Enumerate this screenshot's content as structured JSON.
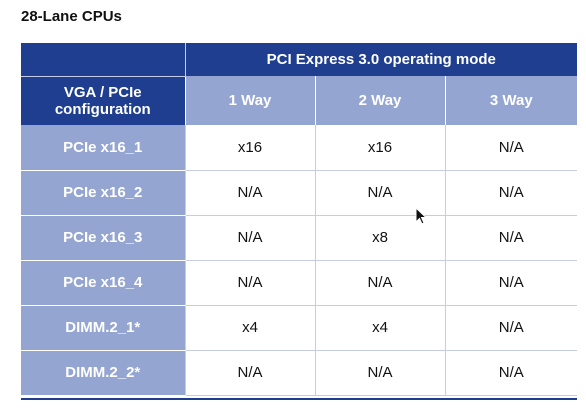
{
  "title": "28-Lane CPUs",
  "header": {
    "group_title": "PCI Express 3.0 operating mode",
    "config_label_line1": "VGA / PCIe",
    "config_label_line2": "configuration",
    "columns": [
      "1 Way",
      "2 Way",
      "3 Way"
    ]
  },
  "rows": [
    {
      "label": "PCIe x16_1",
      "values": [
        "x16",
        "x16",
        "N/A"
      ]
    },
    {
      "label": "PCIe x16_2",
      "values": [
        "N/A",
        "N/A",
        "N/A"
      ]
    },
    {
      "label": "PCIe x16_3",
      "values": [
        "N/A",
        "x8",
        "N/A"
      ]
    },
    {
      "label": "PCIe x16_4",
      "values": [
        "N/A",
        "N/A",
        "N/A"
      ]
    },
    {
      "label": "DIMM.2_1*",
      "values": [
        "x4",
        "x4",
        "N/A"
      ]
    },
    {
      "label": "DIMM.2_2*",
      "values": [
        "N/A",
        "N/A",
        "N/A"
      ]
    }
  ],
  "colors": {
    "header_dark": "#1f3e8f",
    "header_light": "#95a5d2"
  }
}
